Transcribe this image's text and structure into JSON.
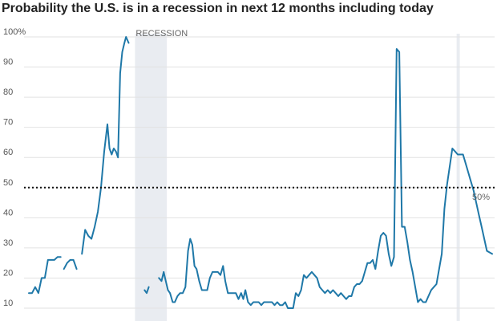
{
  "chart_data": {
    "type": "line",
    "title": "Probability the U.S. is in a recession in next 12 months including today",
    "xlabel": "",
    "ylabel": "",
    "ylim": [
      10,
      100
    ],
    "y_ticks": [
      {
        "value": 100,
        "label": "100%"
      },
      {
        "value": 90,
        "label": "90"
      },
      {
        "value": 80,
        "label": "80"
      },
      {
        "value": 70,
        "label": "70"
      },
      {
        "value": 60,
        "label": "60"
      },
      {
        "value": 50,
        "label": "50"
      },
      {
        "value": 40,
        "label": "40"
      },
      {
        "value": 30,
        "label": "30"
      },
      {
        "value": 20,
        "label": "20"
      },
      {
        "value": 10,
        "label": "10"
      }
    ],
    "x_axis_labels": "none",
    "grid": true,
    "line_color": "#1f78a8",
    "recession_color": "#e9ecf1",
    "reference_line": {
      "value": 50,
      "label": "50%",
      "style": "dotted",
      "color": "#111111"
    },
    "recessions": [
      {
        "label": "RECESSION",
        "start": 20,
        "end": 26
      },
      {
        "label": "",
        "start": 80.6,
        "end": 81.2
      }
    ],
    "series": [
      {
        "values": [
          [
            0,
            15
          ],
          [
            0.6,
            15
          ],
          [
            1.2,
            17
          ],
          [
            1.8,
            15
          ],
          [
            2.4,
            20
          ],
          [
            3,
            20
          ],
          [
            3.6,
            26
          ],
          [
            4.2,
            26
          ],
          [
            4.8,
            26
          ],
          [
            5.4,
            27
          ],
          [
            6,
            27
          ],
          null,
          [
            6.6,
            23
          ],
          [
            7.2,
            25
          ],
          [
            7.8,
            26
          ],
          [
            8.4,
            26
          ],
          [
            9,
            23
          ],
          null,
          [
            10,
            28
          ],
          [
            10.6,
            36
          ],
          [
            11.2,
            34
          ],
          [
            11.8,
            33
          ],
          [
            12.4,
            37
          ],
          [
            13,
            42
          ],
          [
            13.6,
            50
          ],
          [
            14.2,
            62
          ],
          [
            14.8,
            71
          ],
          [
            15.2,
            63
          ],
          [
            15.6,
            61
          ],
          [
            16,
            63
          ],
          [
            16.4,
            62
          ],
          [
            16.8,
            60
          ],
          [
            17.2,
            88
          ],
          [
            17.6,
            95
          ],
          [
            18,
            98
          ],
          [
            18.3,
            100
          ],
          [
            18.8,
            98
          ],
          null,
          [
            21.8,
            16
          ],
          [
            22.2,
            15
          ],
          [
            22.6,
            17
          ],
          null,
          [
            24.5,
            20
          ],
          [
            25,
            19
          ],
          [
            25.4,
            22
          ],
          [
            25.8,
            19
          ],
          [
            26.2,
            16
          ],
          [
            26.6,
            15
          ],
          [
            27.1,
            12
          ],
          [
            27.5,
            12
          ],
          [
            28,
            14
          ],
          [
            28.5,
            15
          ],
          [
            29,
            15
          ],
          [
            29.5,
            17
          ],
          [
            30,
            29
          ],
          [
            30.4,
            33
          ],
          [
            30.8,
            31
          ],
          [
            31.2,
            24
          ],
          [
            31.6,
            23
          ],
          [
            32.1,
            19
          ],
          [
            32.6,
            16
          ],
          [
            33.1,
            16
          ],
          [
            33.6,
            16
          ],
          [
            34.1,
            20
          ],
          [
            34.6,
            22
          ],
          [
            35.1,
            22
          ],
          [
            35.6,
            22
          ],
          [
            36.1,
            21
          ],
          [
            36.6,
            24
          ],
          [
            37,
            19
          ],
          [
            37.5,
            15
          ],
          [
            38,
            15
          ],
          [
            38.5,
            15
          ],
          [
            39,
            15
          ],
          [
            39.5,
            13
          ],
          [
            40,
            15
          ],
          [
            40.4,
            13
          ],
          [
            40.8,
            16
          ],
          [
            41.3,
            12
          ],
          [
            41.8,
            11
          ],
          [
            42.3,
            12
          ],
          [
            42.8,
            12
          ],
          [
            43.3,
            12
          ],
          [
            43.8,
            11
          ],
          [
            44.3,
            12
          ],
          [
            44.8,
            12
          ],
          [
            45.3,
            12
          ],
          [
            45.8,
            12
          ],
          [
            46.3,
            11
          ],
          [
            46.8,
            12
          ],
          [
            47.3,
            11
          ],
          [
            47.8,
            11
          ],
          [
            48.3,
            12
          ],
          [
            48.8,
            10
          ],
          [
            49.3,
            10
          ],
          [
            49.8,
            10
          ],
          [
            50.3,
            15
          ],
          [
            50.8,
            14
          ],
          [
            51.3,
            16
          ],
          [
            51.8,
            21
          ],
          [
            52.3,
            20
          ],
          [
            52.8,
            21
          ],
          [
            53.3,
            22
          ],
          [
            53.8,
            21
          ],
          [
            54.3,
            20
          ],
          [
            54.8,
            17
          ],
          [
            55.3,
            16
          ],
          [
            55.8,
            15
          ],
          [
            56.3,
            16
          ],
          [
            56.8,
            15
          ],
          [
            57.3,
            16
          ],
          [
            57.8,
            15
          ],
          [
            58.3,
            14
          ],
          [
            58.8,
            15
          ],
          [
            59.3,
            14
          ],
          [
            59.8,
            13
          ],
          [
            60.3,
            14
          ],
          [
            60.8,
            14
          ],
          [
            61.3,
            17
          ],
          [
            61.8,
            18
          ],
          [
            62.3,
            18
          ],
          [
            62.8,
            19
          ],
          [
            63.3,
            22
          ],
          [
            63.8,
            25
          ],
          [
            64.3,
            25
          ],
          [
            64.8,
            26
          ],
          [
            65.3,
            23
          ],
          [
            65.8,
            29
          ],
          [
            66.3,
            34
          ],
          [
            66.8,
            35
          ],
          [
            67.3,
            34
          ],
          [
            67.8,
            28
          ],
          [
            68.3,
            24
          ],
          [
            68.8,
            27
          ],
          [
            69.3,
            96
          ],
          [
            69.8,
            95
          ],
          [
            70.3,
            37
          ],
          [
            70.8,
            37
          ],
          [
            71.3,
            32
          ],
          [
            71.8,
            26
          ],
          [
            72.3,
            22
          ],
          [
            72.8,
            17
          ],
          [
            73.3,
            12
          ],
          [
            73.8,
            13
          ],
          [
            74.3,
            12
          ],
          [
            74.8,
            12
          ],
          [
            75.3,
            14
          ],
          [
            75.8,
            16
          ],
          [
            76.3,
            17
          ],
          [
            76.8,
            18
          ],
          [
            77.3,
            23
          ],
          [
            77.8,
            28
          ],
          [
            78.3,
            43
          ],
          [
            78.8,
            51
          ],
          [
            79.3,
            57
          ],
          [
            79.8,
            63
          ],
          [
            80.3,
            62
          ],
          [
            80.8,
            61
          ],
          [
            81.3,
            61
          ],
          [
            81.8,
            61
          ],
          [
            82.3,
            58
          ],
          [
            82.8,
            55
          ],
          [
            83.3,
            52
          ],
          [
            83.8,
            49
          ],
          [
            84.3,
            45
          ],
          [
            84.8,
            41
          ],
          [
            85.3,
            37
          ],
          [
            85.8,
            33
          ],
          [
            86.3,
            29
          ],
          [
            86.8,
            28.5
          ],
          [
            87.3,
            28
          ]
        ]
      }
    ]
  }
}
